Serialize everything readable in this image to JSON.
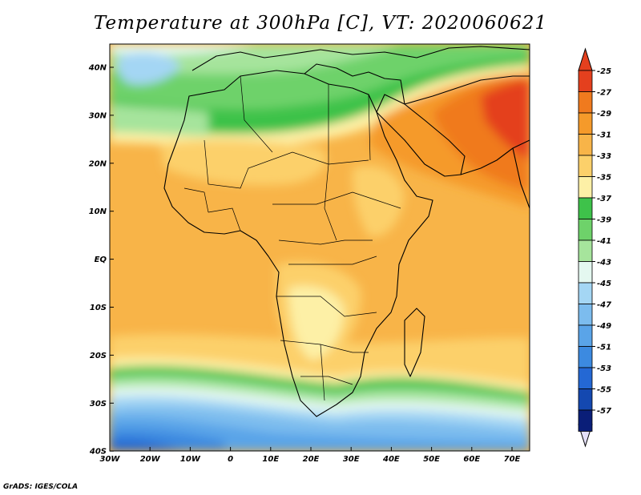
{
  "title": "Temperature at 300hPa [C], VT: 2020060621",
  "credit": "GrADS: IGES/COLA",
  "lat_labels": [
    "40N",
    "30N",
    "20N",
    "10N",
    "EQ",
    "10S",
    "20S",
    "30S",
    "40S"
  ],
  "lon_labels": [
    "30W",
    "20W",
    "10W",
    "0",
    "10E",
    "20E",
    "30E",
    "40E",
    "50E",
    "60E",
    "70E"
  ],
  "colorbar": {
    "labels": [
      "-25",
      "-27",
      "-29",
      "-31",
      "-33",
      "-35",
      "-37",
      "-39",
      "-41",
      "-43",
      "-45",
      "-47",
      "-49",
      "-51",
      "-53",
      "-55",
      "-57"
    ],
    "colors": [
      "#e4401e",
      "#f07a1e",
      "#f59a2a",
      "#f8b448",
      "#fcd06a",
      "#fdf0a6",
      "#3ec24a",
      "#6ed26a",
      "#a6e49c",
      "#e4f8f0",
      "#a4d6f4",
      "#7cbcee",
      "#5aa4e8",
      "#3c8ae0",
      "#2468d4",
      "#1448b0",
      "#0a1e78"
    ]
  }
}
